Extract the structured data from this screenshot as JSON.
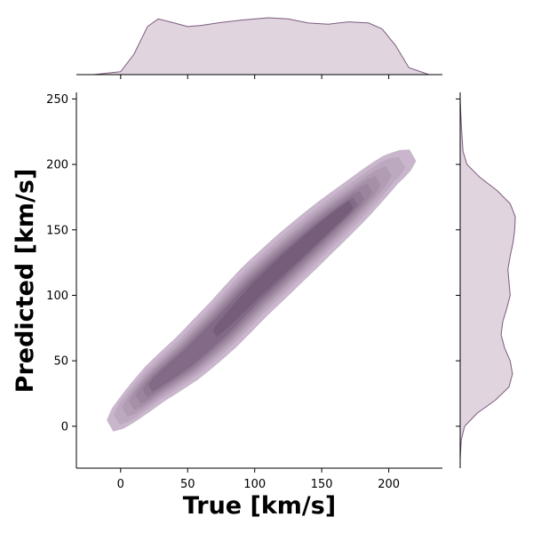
{
  "chart_data": {
    "type": "jointplot-kde",
    "xlabel": "True [km/s]",
    "ylabel": "Predicted [km/s]",
    "xlim": [
      -33,
      240
    ],
    "ylim": [
      -32,
      255
    ],
    "xticks": [
      0,
      50,
      100,
      150,
      200
    ],
    "yticks": [
      0,
      50,
      100,
      150,
      200,
      250
    ],
    "colors": {
      "fill_light": "#c9b6cc",
      "fill_dark": "#6f5673",
      "line": "#7c5a80",
      "marginal_fill": "#e0d5de"
    },
    "joint_ridge": {
      "x": [
        0,
        25,
        50,
        75,
        100,
        125,
        150,
        175,
        200,
        215
      ],
      "y": [
        8,
        32,
        52,
        76,
        103,
        127,
        150,
        172,
        195,
        205
      ]
    },
    "marginal_x": {
      "x": [
        -20,
        0,
        10,
        20,
        28,
        40,
        50,
        60,
        75,
        90,
        110,
        125,
        140,
        155,
        170,
        185,
        195,
        205,
        215,
        230
      ],
      "density": [
        0.0,
        0.05,
        0.35,
        0.82,
        0.95,
        0.88,
        0.82,
        0.84,
        0.89,
        0.93,
        0.97,
        0.95,
        0.88,
        0.86,
        0.9,
        0.88,
        0.78,
        0.5,
        0.12,
        0.0
      ]
    },
    "marginal_y": {
      "y": [
        -25,
        -10,
        0,
        10,
        20,
        30,
        40,
        50,
        60,
        70,
        80,
        90,
        100,
        110,
        120,
        130,
        140,
        150,
        160,
        170,
        180,
        190,
        200,
        210,
        230,
        250
      ],
      "density": [
        0.0,
        0.02,
        0.08,
        0.3,
        0.62,
        0.86,
        0.92,
        0.88,
        0.78,
        0.72,
        0.75,
        0.82,
        0.88,
        0.86,
        0.84,
        0.88,
        0.93,
        0.96,
        0.97,
        0.88,
        0.65,
        0.35,
        0.12,
        0.05,
        0.02,
        0.0
      ]
    }
  }
}
